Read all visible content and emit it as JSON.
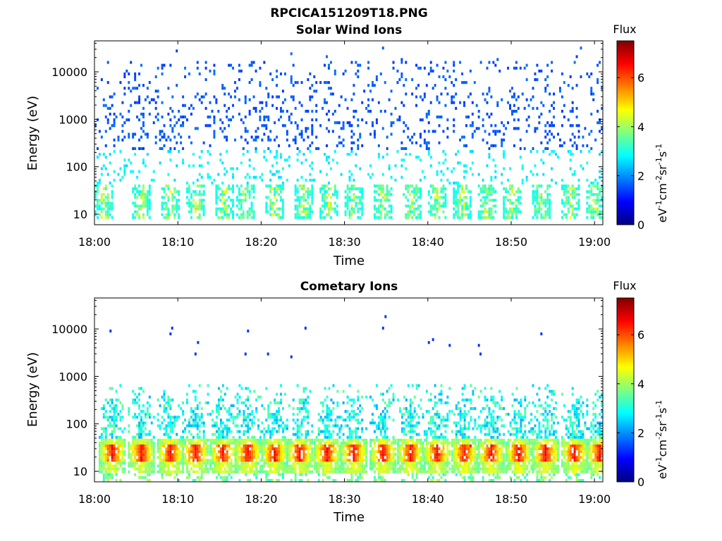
{
  "figure_title": "RPCICA151209T18.PNG",
  "colors": {
    "colormap": [
      "#00007f",
      "#0000ff",
      "#007fff",
      "#00ffff",
      "#7fff7f",
      "#ffff00",
      "#ff7f00",
      "#ff0000",
      "#7f0000"
    ],
    "axes": "#000000",
    "background": "#ffffff"
  },
  "chart_data": [
    {
      "type": "heatmap",
      "title": "Solar Wind Ions",
      "xlabel": "Time",
      "ylabel": "Energy (eV)",
      "x_ticks": [
        "18:00",
        "18:10",
        "18:20",
        "18:30",
        "18:40",
        "18:50",
        "19:00"
      ],
      "x_range_minutes": [
        0,
        61
      ],
      "y_scale": "log",
      "y_ticks": [
        "10",
        "100",
        "1000",
        "10000"
      ],
      "y_range": [
        6,
        45000
      ],
      "colorbar": {
        "label": "Flux",
        "unit": "eV-1cm-2sr-1s-1",
        "ticks": [
          "0",
          "2",
          "4",
          "6"
        ],
        "range": [
          0,
          7.5
        ]
      },
      "pattern": {
        "description_bursts_minutes": [
          1,
          5.5,
          9,
          12,
          15.5,
          18,
          21.5,
          25,
          28,
          31,
          34.5,
          38,
          41,
          44,
          47,
          50,
          53.5,
          57,
          60
        ],
        "low_band_energy_eV": [
          8,
          40
        ],
        "low_band_flux": 3.5,
        "scattered_energy_eV": [
          40,
          30000
        ],
        "scattered_flux": 1.3
      }
    },
    {
      "type": "heatmap",
      "title": "Cometary Ions",
      "xlabel": "Time",
      "ylabel": "Energy (eV)",
      "x_ticks": [
        "18:00",
        "18:10",
        "18:20",
        "18:30",
        "18:40",
        "18:50",
        "19:00"
      ],
      "x_range_minutes": [
        0,
        61
      ],
      "y_scale": "log",
      "y_ticks": [
        "10",
        "100",
        "1000",
        "10000"
      ],
      "y_range": [
        6,
        45000
      ],
      "colorbar": {
        "label": "Flux",
        "unit": "eV-1cm-2sr-1s-1",
        "ticks": [
          "0",
          "2",
          "4",
          "6"
        ],
        "range": [
          0,
          7.5
        ]
      },
      "pattern": {
        "burst_minutes": [
          2,
          5.5,
          9,
          12,
          15.3,
          18.3,
          21.5,
          24.5,
          27.8,
          31,
          34.5,
          37.8,
          41,
          44.3,
          47.5,
          50.8,
          54,
          57.5,
          60.5
        ],
        "core_energy_eV": [
          10,
          45
        ],
        "core_flux": 5.5,
        "tail_energy_eV": [
          45,
          600
        ],
        "tail_flux": 3.2,
        "isolated_high_energy_points": [
          [
            1.8,
            9000
          ],
          [
            9,
            8000
          ],
          [
            9.2,
            10500
          ],
          [
            12,
            3000
          ],
          [
            12.3,
            5000
          ],
          [
            18.3,
            9500
          ],
          [
            18,
            2800
          ],
          [
            20.7,
            3000
          ],
          [
            23.5,
            2600
          ],
          [
            25.2,
            10500
          ],
          [
            34.8,
            17000
          ],
          [
            34.5,
            10500
          ],
          [
            40,
            5000
          ],
          [
            40.5,
            6000
          ],
          [
            42.5,
            4500
          ],
          [
            46,
            4800
          ],
          [
            46.2,
            3000
          ],
          [
            53.5,
            7800
          ],
          [
            45,
            35
          ]
        ]
      }
    }
  ]
}
